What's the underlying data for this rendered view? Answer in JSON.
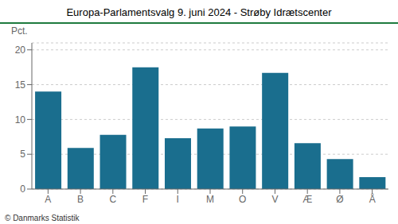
{
  "chart_data": {
    "type": "bar",
    "title": "Europa-Parlamentsvalg 9. juni 2024 - Strøby Idrætscenter",
    "categories": [
      "A",
      "B",
      "C",
      "F",
      "I",
      "M",
      "O",
      "V",
      "Æ",
      "Ø",
      "Å"
    ],
    "values": [
      14.0,
      5.9,
      7.8,
      17.5,
      7.3,
      8.7,
      9.0,
      16.7,
      6.6,
      4.3,
      1.7
    ],
    "color": "#1a6e8e",
    "ylabel": "Pct.",
    "ylim": [
      0,
      21
    ],
    "yticks": [
      0,
      5,
      10,
      15,
      20
    ],
    "grid": true,
    "annotations": [
      "© Danmarks Statistik"
    ]
  }
}
